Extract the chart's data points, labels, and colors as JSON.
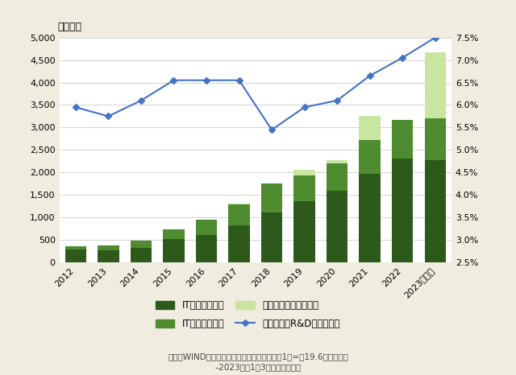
{
  "years": [
    "2012",
    "2013",
    "2014",
    "2015",
    "2016",
    "2017",
    "2018",
    "2019",
    "2020",
    "2021",
    "2022",
    "2023（予）"
  ],
  "it_hardware": [
    290,
    280,
    320,
    530,
    610,
    820,
    1120,
    1370,
    1590,
    1970,
    2310,
    2280
  ],
  "it_software": [
    80,
    100,
    170,
    200,
    340,
    470,
    630,
    560,
    610,
    760,
    860,
    920
  ],
  "semiconductor": [
    0,
    0,
    0,
    0,
    0,
    15,
    0,
    130,
    80,
    520,
    0,
    1470
  ],
  "rd_ratio": [
    5.95,
    5.75,
    6.1,
    6.55,
    6.55,
    6.55,
    5.45,
    5.95,
    6.1,
    6.65,
    7.05,
    7.5
  ],
  "bar_color_hardware": "#2d5a1b",
  "bar_color_software": "#4e8c2f",
  "bar_color_semi": "#c8e6a0",
  "line_color": "#4472c4",
  "bg_color": "#f0ede0",
  "plot_bg_color": "#ffffff",
  "ylim_left": [
    0,
    5000
  ],
  "ylim_right": [
    2.5,
    7.5
  ],
  "yticks_left": [
    0,
    500,
    1000,
    1500,
    2000,
    2500,
    3000,
    3500,
    4000,
    4500,
    5000
  ],
  "yticks_right": [
    2.5,
    3.0,
    3.5,
    4.0,
    4.5,
    5.0,
    5.5,
    6.0,
    6.5,
    7.0,
    7.5
  ],
  "ylabel_left": "（億元）",
  "legend_labels": [
    "ITハードウェア",
    "ITソフトウェア",
    "半導体及び半導体装置",
    "対売上高のR&D比（右軸）"
  ],
  "footnote1": "出所：WINDデータよりアイザワ証券作成　（1元=到19.6円　計算）",
  "footnote2": "–2023年は1～3月ベースで予想",
  "grid_color": "#cccccc"
}
